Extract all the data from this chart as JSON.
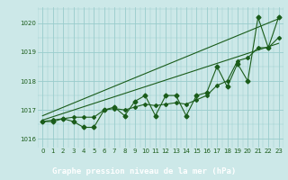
{
  "x": [
    0,
    1,
    2,
    3,
    4,
    5,
    6,
    7,
    8,
    9,
    10,
    11,
    12,
    13,
    14,
    15,
    16,
    17,
    18,
    19,
    20,
    21,
    22,
    23
  ],
  "y_zigzag": [
    1016.6,
    1016.6,
    1016.7,
    1016.6,
    1016.4,
    1016.4,
    1017.0,
    1017.1,
    1016.8,
    1017.3,
    1017.5,
    1016.8,
    1017.5,
    1017.5,
    1016.8,
    1017.5,
    1017.6,
    1018.5,
    1017.8,
    1018.6,
    1018.0,
    1020.2,
    1019.15,
    1020.2
  ],
  "y_smooth": [
    1016.6,
    1016.65,
    1016.7,
    1016.75,
    1016.75,
    1016.75,
    1017.0,
    1017.05,
    1017.0,
    1017.1,
    1017.2,
    1017.15,
    1017.2,
    1017.25,
    1017.2,
    1017.35,
    1017.5,
    1017.85,
    1018.0,
    1018.7,
    1018.8,
    1019.15,
    1019.15,
    1019.5
  ],
  "trend1_x": [
    0,
    23
  ],
  "trend1_y": [
    1016.65,
    1019.3
  ],
  "trend2_x": [
    0,
    23
  ],
  "trend2_y": [
    1016.8,
    1020.15
  ],
  "bg_color": "#cce8e8",
  "plot_bg": "#cce8e8",
  "grid_color": "#99cccc",
  "line_color": "#1a5c1a",
  "marker_color": "#1a5c1a",
  "label_bg": "#2d6e2d",
  "label_fg": "#ffffff",
  "xlabel": "Graphe pression niveau de la mer (hPa)",
  "ylim": [
    1015.7,
    1020.55
  ],
  "xlim": [
    -0.5,
    23.5
  ],
  "yticks": [
    1016,
    1017,
    1018,
    1019,
    1020
  ],
  "xticks": [
    0,
    1,
    2,
    3,
    4,
    5,
    6,
    7,
    8,
    9,
    10,
    11,
    12,
    13,
    14,
    15,
    16,
    17,
    18,
    19,
    20,
    21,
    22,
    23
  ]
}
